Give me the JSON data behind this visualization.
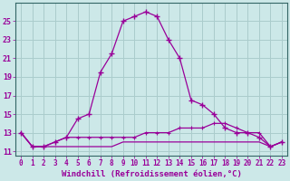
{
  "xlabel": "Windchill (Refroidissement éolien,°C)",
  "background_color": "#cce8e8",
  "grid_color": "#aacccc",
  "line_color": "#990099",
  "x_hours": [
    0,
    1,
    2,
    3,
    4,
    5,
    6,
    7,
    8,
    9,
    10,
    11,
    12,
    13,
    14,
    15,
    16,
    17,
    18,
    19,
    20,
    21,
    22,
    23
  ],
  "main_line": [
    13.0,
    11.5,
    11.5,
    12.0,
    12.5,
    14.5,
    15.0,
    19.5,
    21.5,
    25.0,
    25.5,
    26.0,
    25.5,
    23.0,
    21.0,
    16.5,
    16.0,
    15.0,
    13.5,
    13.0,
    13.0,
    12.5,
    11.5,
    12.0
  ],
  "flat_line1": [
    13.0,
    11.5,
    11.5,
    12.0,
    12.5,
    12.5,
    12.5,
    12.5,
    12.5,
    12.5,
    12.5,
    13.0,
    13.0,
    13.0,
    13.5,
    13.5,
    13.5,
    14.0,
    14.0,
    13.5,
    13.0,
    13.0,
    11.5,
    12.0
  ],
  "flat_line2": [
    13.0,
    11.5,
    11.5,
    11.5,
    11.5,
    11.5,
    11.5,
    11.5,
    11.5,
    12.0,
    12.0,
    12.0,
    12.0,
    12.0,
    12.0,
    12.0,
    12.0,
    12.0,
    12.0,
    12.0,
    12.0,
    12.0,
    11.5,
    12.0
  ],
  "ylim": [
    10.5,
    27.0
  ],
  "yticks": [
    11,
    13,
    15,
    17,
    19,
    21,
    23,
    25
  ],
  "xticks": [
    0,
    1,
    2,
    3,
    4,
    5,
    6,
    7,
    8,
    9,
    10,
    11,
    12,
    13,
    14,
    15,
    16,
    17,
    18,
    19,
    20,
    21,
    22,
    23
  ],
  "tick_fontsize": 5.5,
  "xlabel_fontsize": 6.5
}
